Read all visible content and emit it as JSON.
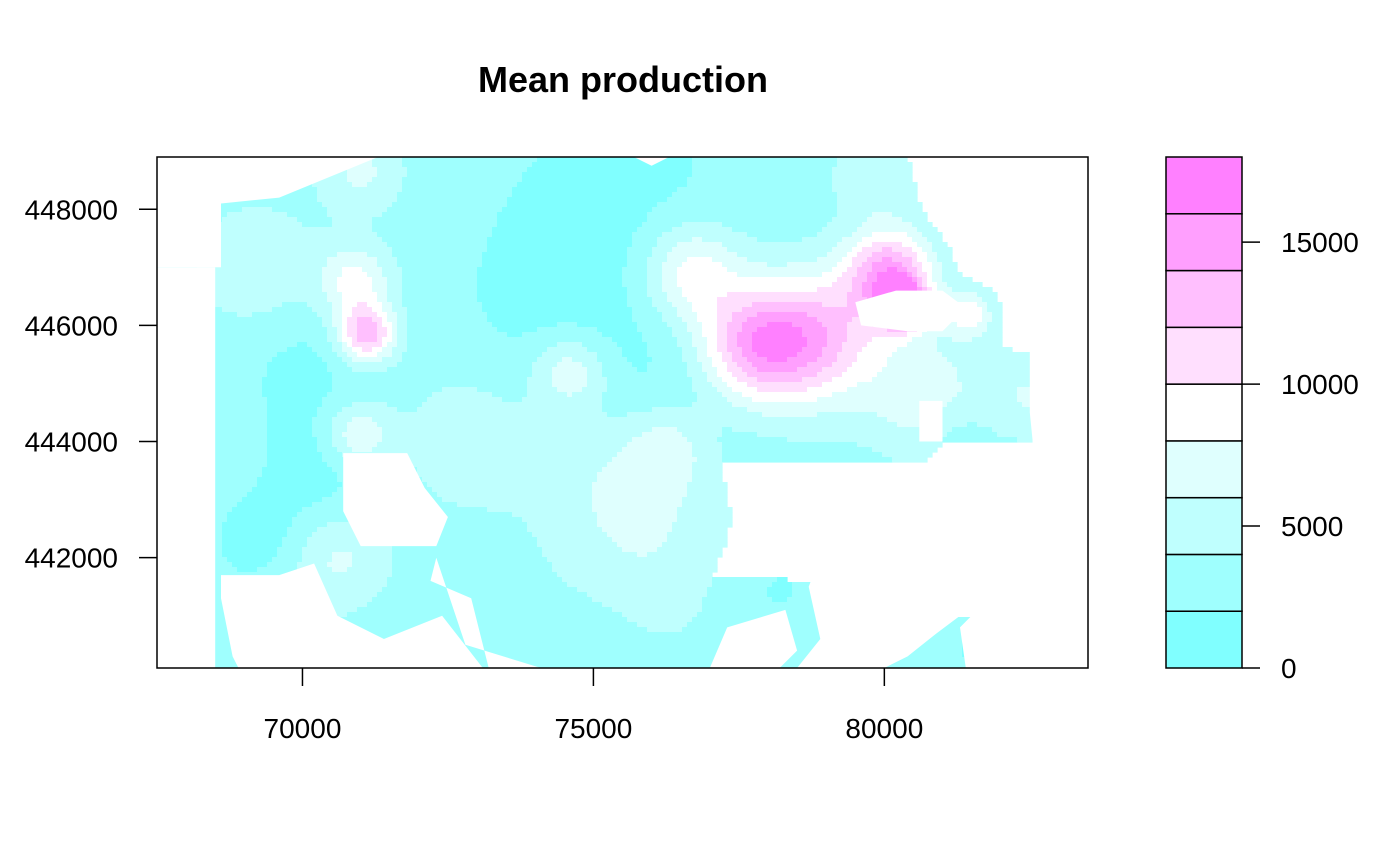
{
  "chart_data": {
    "type": "heatmap",
    "title": "Mean production",
    "xlabel": "",
    "ylabel": "",
    "xlim": [
      67500,
      83500
    ],
    "ylim": [
      440100,
      448900
    ],
    "xticks": [
      70000,
      75000,
      80000
    ],
    "yticks": [
      442000,
      444000,
      446000,
      448000
    ],
    "x_tick_labels": [
      "70000",
      "75000",
      "80000"
    ],
    "y_tick_labels": [
      "442000",
      "444000",
      "446000",
      "448000"
    ],
    "legend": {
      "placement": "right",
      "range": [
        0,
        18000
      ],
      "breaks": [
        0,
        2000,
        4000,
        6000,
        8000,
        10000,
        12000,
        14000,
        16000,
        18000
      ],
      "colors": [
        "#80ffff",
        "#9ffffe",
        "#bffffe",
        "#dffffe",
        "#ffffff",
        "#ffdffe",
        "#ffbffe",
        "#ff9ffe",
        "#ff80ff"
      ],
      "ticks": [
        0,
        5000,
        10000,
        15000
      ],
      "tick_labels": [
        "0",
        "5000",
        "10000",
        "15000"
      ]
    },
    "grid": false,
    "surface": {
      "background_value": 3000,
      "bumps": [
        {
          "x": 71100,
          "y": 445850,
          "peak": 13500,
          "radius": 350
        },
        {
          "x": 70900,
          "y": 446750,
          "peak": 9000,
          "radius": 450
        },
        {
          "x": 70950,
          "y": 444100,
          "peak": 8500,
          "radius": 400
        },
        {
          "x": 77800,
          "y": 445650,
          "peak": 13500,
          "radius": 700
        },
        {
          "x": 78900,
          "y": 445800,
          "peak": 11500,
          "radius": 800
        },
        {
          "x": 80100,
          "y": 446900,
          "peak": 14500,
          "radius": 550
        },
        {
          "x": 80300,
          "y": 446350,
          "peak": 17000,
          "radius": 280
        },
        {
          "x": 76700,
          "y": 446900,
          "peak": 9500,
          "radius": 600
        },
        {
          "x": 81450,
          "y": 446200,
          "peak": 9000,
          "radius": 300
        },
        {
          "x": 74600,
          "y": 445200,
          "peak": 8000,
          "radius": 450
        },
        {
          "x": 76300,
          "y": 443900,
          "peak": 6500,
          "radius": 500
        },
        {
          "x": 72900,
          "y": 444100,
          "peak": 5500,
          "radius": 900
        },
        {
          "x": 69200,
          "y": 447000,
          "peak": 6000,
          "radius": 700
        },
        {
          "x": 76000,
          "y": 442200,
          "peak": 5500,
          "radius": 1200
        },
        {
          "x": 70600,
          "y": 442000,
          "peak": 6500,
          "radius": 600
        },
        {
          "x": 69600,
          "y": 440700,
          "peak": 5500,
          "radius": 500
        },
        {
          "x": 82500,
          "y": 444800,
          "peak": 6000,
          "radius": 500
        },
        {
          "x": 80700,
          "y": 444800,
          "peak": 7500,
          "radius": 700
        },
        {
          "x": 71000,
          "y": 448650,
          "peak": 6500,
          "radius": 500
        },
        {
          "x": 79900,
          "y": 448500,
          "peak": 6000,
          "radius": 600
        },
        {
          "x": 75500,
          "y": 443500,
          "peak": 5500,
          "radius": 900
        },
        {
          "x": 70100,
          "y": 445300,
          "peak": 1500,
          "radius": 900
        },
        {
          "x": 70400,
          "y": 443500,
          "peak": 1000,
          "radius": 700
        },
        {
          "x": 69300,
          "y": 442300,
          "peak": 1000,
          "radius": 600
        },
        {
          "x": 74400,
          "y": 446000,
          "peak": 1500,
          "radius": 1400
        },
        {
          "x": 75500,
          "y": 448200,
          "peak": 1500,
          "radius": 1500
        },
        {
          "x": 81000,
          "y": 448300,
          "peak": 2000,
          "radius": 1000
        },
        {
          "x": 79500,
          "y": 447700,
          "peak": 2500,
          "radius": 500
        },
        {
          "x": 81200,
          "y": 444200,
          "peak": 1500,
          "radius": 400
        },
        {
          "x": 80000,
          "y": 441000,
          "peak": 1000,
          "radius": 500
        },
        {
          "x": 81800,
          "y": 440500,
          "peak": 1000,
          "radius": 400
        },
        {
          "x": 78000,
          "y": 441500,
          "peak": 1500,
          "radius": 700
        },
        {
          "x": 74900,
          "y": 440500,
          "peak": 2000,
          "radius": 600
        },
        {
          "x": 76500,
          "y": 444500,
          "peak": 1500,
          "radius": 1000
        }
      ],
      "missing_regions": [
        [
          [
            67500,
            448900
          ],
          [
            71300,
            448900
          ],
          [
            69600,
            448200
          ],
          [
            68600,
            448100
          ],
          [
            68600,
            447000
          ],
          [
            68000,
            447000
          ],
          [
            67500,
            447000
          ]
        ],
        [
          [
            67500,
            447000
          ],
          [
            68500,
            447000
          ],
          [
            68500,
            440100
          ],
          [
            67500,
            440100
          ]
        ],
        [
          [
            68600,
            441700
          ],
          [
            69600,
            441700
          ],
          [
            70200,
            441900
          ],
          [
            70600,
            441000
          ],
          [
            71400,
            440600
          ],
          [
            72400,
            441000
          ],
          [
            73100,
            440100
          ],
          [
            68900,
            440100
          ],
          [
            68800,
            440300
          ],
          [
            68600,
            441300
          ]
        ],
        [
          [
            70700,
            443800
          ],
          [
            71800,
            443800
          ],
          [
            72100,
            443200
          ],
          [
            72500,
            442700
          ],
          [
            72300,
            442200
          ],
          [
            71000,
            442200
          ],
          [
            70700,
            442800
          ],
          [
            70700,
            443300
          ]
        ],
        [
          [
            72300,
            442000
          ],
          [
            72200,
            441600
          ],
          [
            72900,
            441300
          ],
          [
            73200,
            440100
          ],
          [
            74100,
            440100
          ],
          [
            72800,
            440500
          ]
        ],
        [
          [
            75700,
            448900
          ],
          [
            76300,
            448900
          ],
          [
            76000,
            448750
          ]
        ],
        [
          [
            79500,
            446400
          ],
          [
            80200,
            446600
          ],
          [
            81000,
            446600
          ],
          [
            81400,
            446300
          ],
          [
            81000,
            445900
          ],
          [
            80400,
            445900
          ],
          [
            79600,
            446000
          ]
        ],
        [
          [
            78900,
            443100
          ],
          [
            79600,
            443500
          ],
          [
            80400,
            443400
          ],
          [
            81000,
            443300
          ],
          [
            81400,
            443000
          ],
          [
            81600,
            442300
          ],
          [
            81700,
            441600
          ],
          [
            81300,
            441000
          ],
          [
            80900,
            440700
          ],
          [
            80400,
            440300
          ],
          [
            80000,
            440100
          ],
          [
            78500,
            440100
          ],
          [
            78900,
            440600
          ],
          [
            78700,
            441500
          ],
          [
            79000,
            442300
          ]
        ],
        [
          [
            80600,
            444700
          ],
          [
            81000,
            444700
          ],
          [
            81000,
            444000
          ],
          [
            80600,
            444000
          ]
        ],
        [
          [
            82600,
            448900
          ],
          [
            83500,
            448900
          ],
          [
            83500,
            440100
          ],
          [
            82600,
            440100
          ],
          [
            82600,
            443500
          ],
          [
            82500,
            444500
          ],
          [
            82500,
            446800
          ],
          [
            82600,
            448000
          ]
        ],
        [
          [
            81700,
            441600
          ],
          [
            82500,
            441600
          ],
          [
            82500,
            440100
          ],
          [
            81400,
            440100
          ],
          [
            81300,
            440800
          ],
          [
            81600,
            441100
          ]
        ],
        [
          [
            77300,
            440800
          ],
          [
            78300,
            441100
          ],
          [
            78500,
            440400
          ],
          [
            78200,
            440100
          ],
          [
            77000,
            440100
          ]
        ]
      ]
    }
  }
}
